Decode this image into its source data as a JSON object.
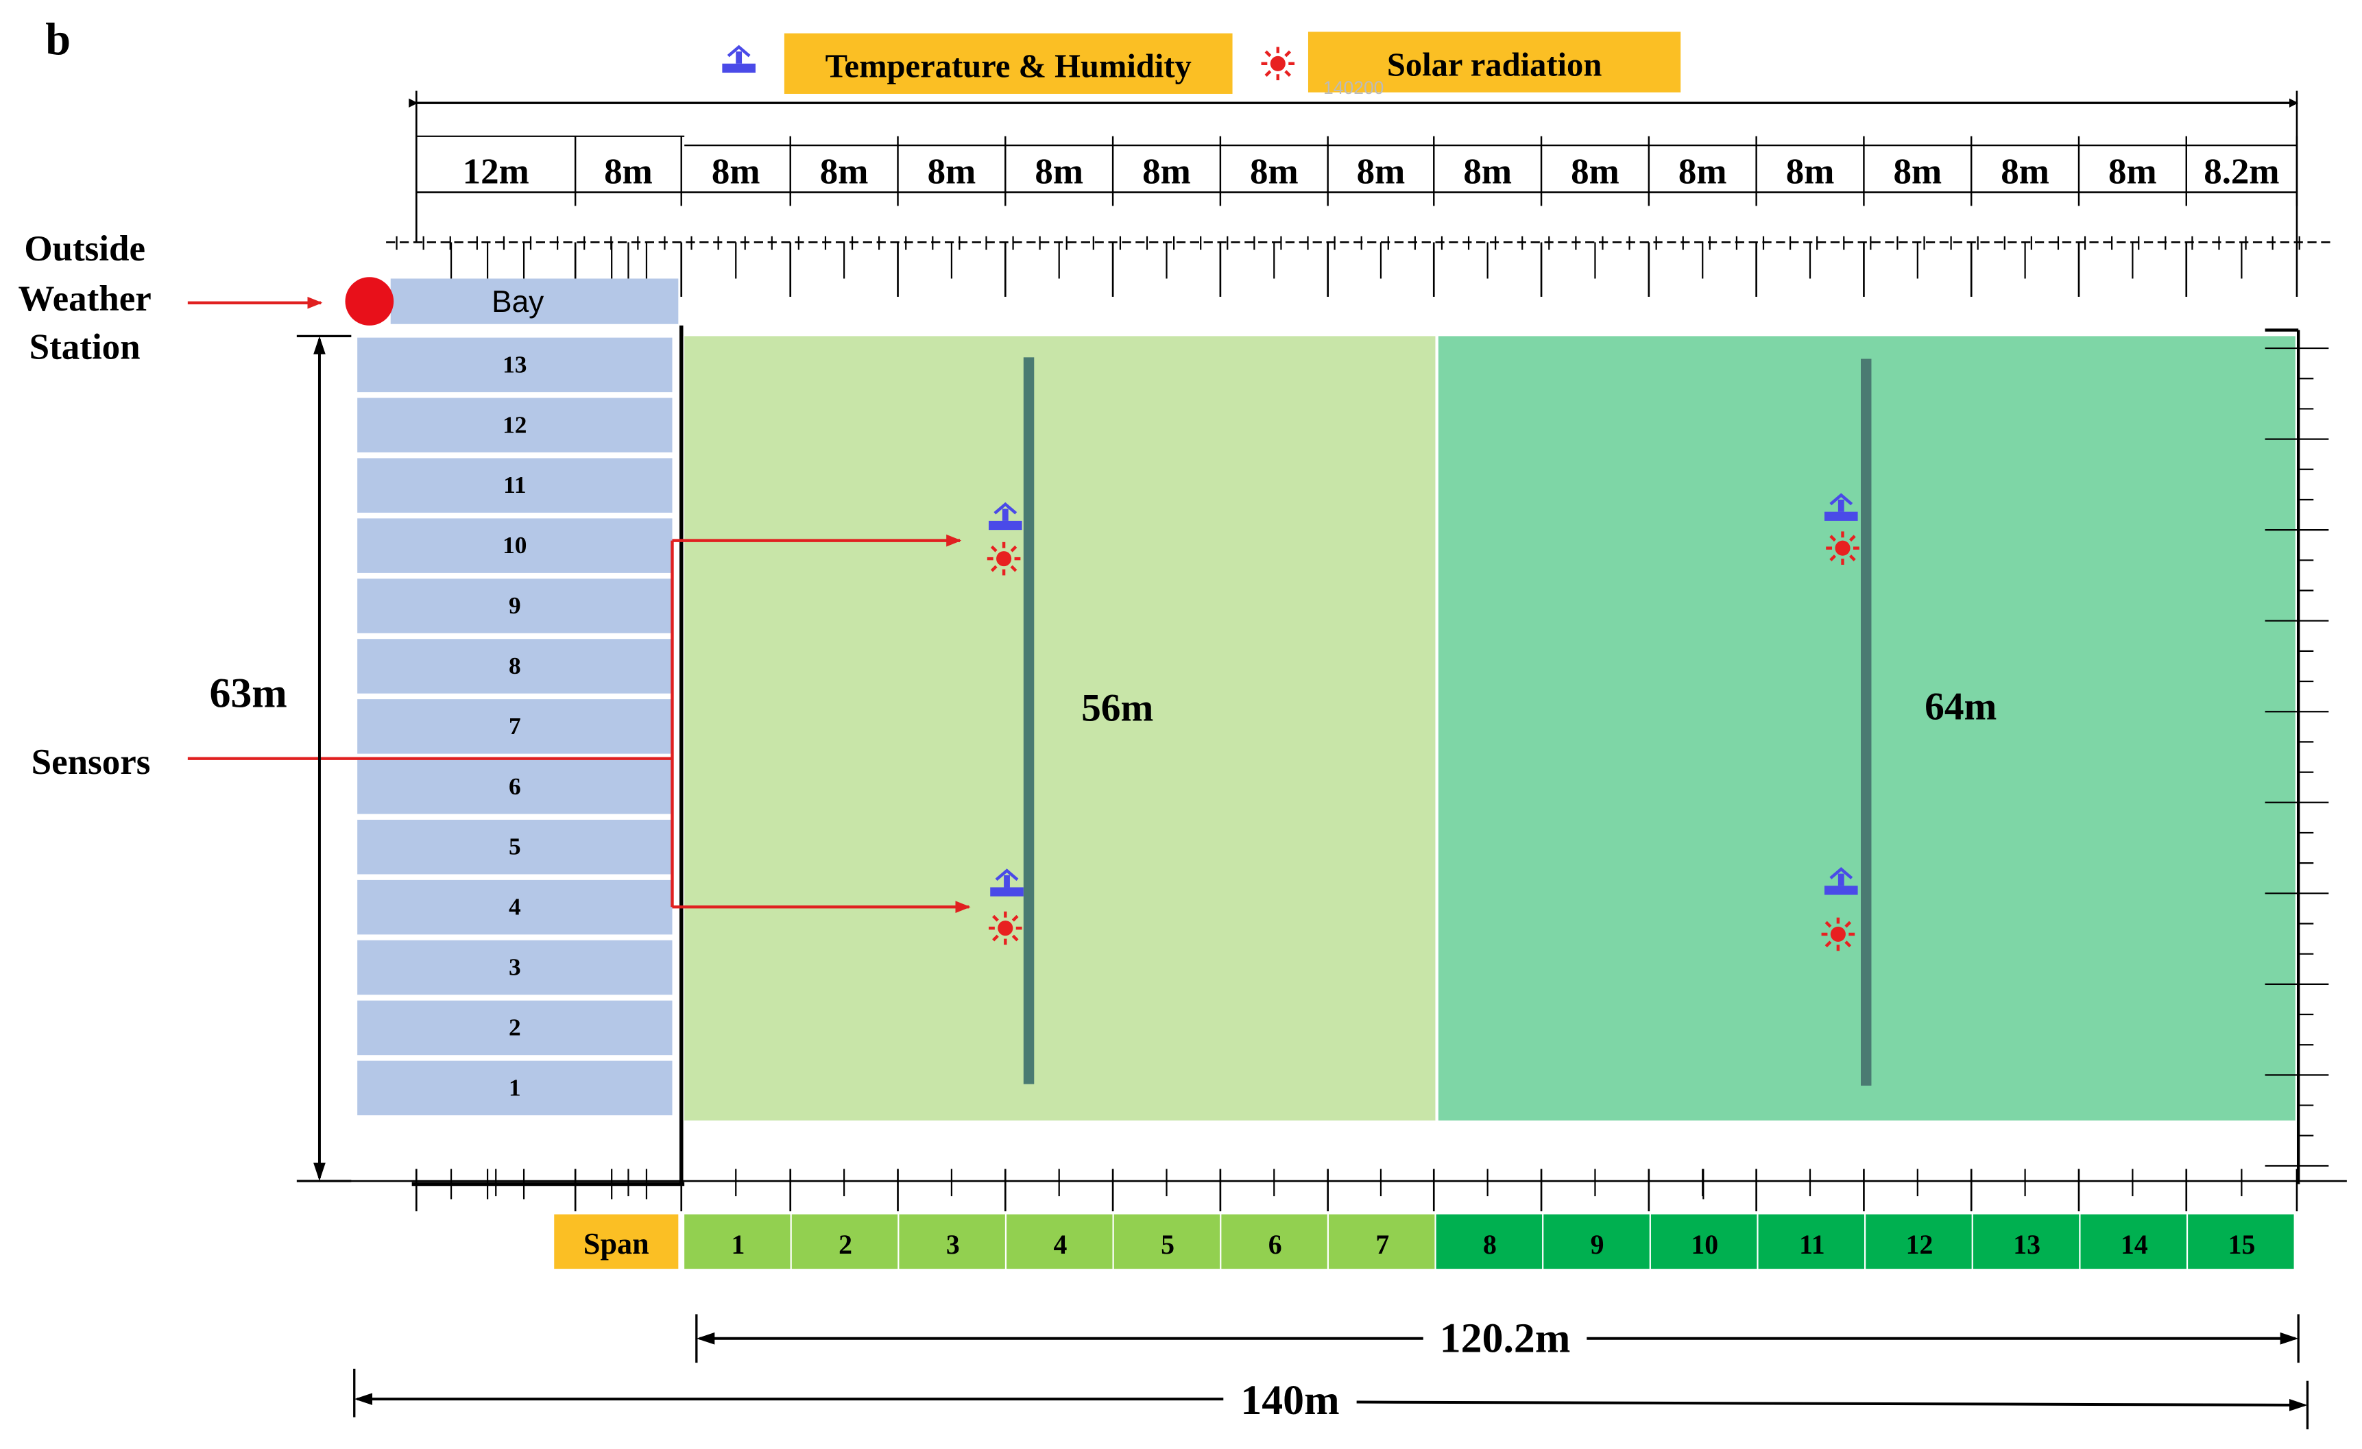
{
  "panel_label": "b",
  "legend": {
    "temp_humidity_label": "Temperature & Humidity",
    "solar_label": "Solar radiation",
    "background_color": "#FBBF24",
    "temp_icon": "temperature-humidity-sensor-icon",
    "solar_icon": "solar-radiation-sensor-icon"
  },
  "top_dimensions": {
    "partial_reading": "140200",
    "segments": [
      "12m",
      "8m",
      "8m",
      "8m",
      "8m",
      "8m",
      "8m",
      "8m",
      "8m",
      "8m",
      "8m",
      "8m",
      "8m",
      "8m",
      "8m",
      "8m",
      "8.2m"
    ]
  },
  "labels": {
    "outside_weather_station": [
      "Outside",
      "Weather",
      "Station"
    ],
    "sensors": "Sensors",
    "height": "63m",
    "zone1_length": "56m",
    "zone2_length": "64m",
    "total_width_inner": "120.2m",
    "total_width": "140m"
  },
  "bay": {
    "header": "Bay",
    "rows": [
      "13",
      "12",
      "11",
      "10",
      "9",
      "8",
      "7",
      "6",
      "5",
      "4",
      "3",
      "2",
      "1"
    ],
    "color": "#B4C7E7"
  },
  "span": {
    "header": "Span",
    "header_color": "#FBBF24",
    "items": [
      "1",
      "2",
      "3",
      "4",
      "5",
      "6",
      "7",
      "8",
      "9",
      "10",
      "11",
      "12",
      "13",
      "14",
      "15"
    ],
    "zone1_color": "#92D050",
    "zone2_color": "#00B050"
  },
  "zones": {
    "zone1_color": "#C8E5A8",
    "zone2_color": "#7ED6A6"
  },
  "colors": {
    "arrow": "#E02020",
    "station": "#E8101A",
    "sensor_line": "#4A7A72",
    "temp_icon": "#4A4AE8",
    "solar_icon": "#E82020"
  }
}
